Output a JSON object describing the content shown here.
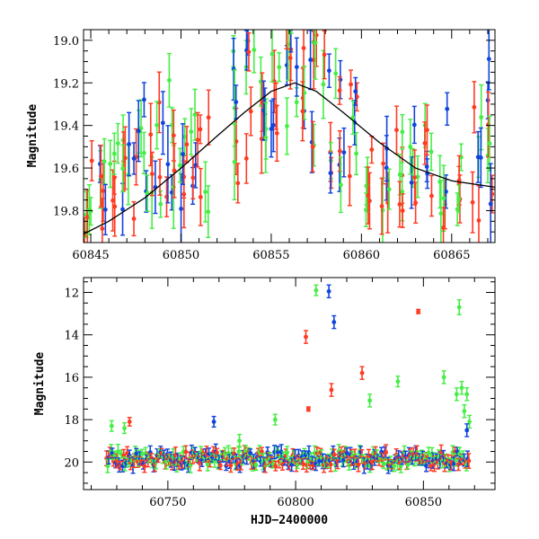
{
  "chart_data": [
    {
      "type": "scatter",
      "panel": "top",
      "xlabel": "",
      "ylabel": "Magnitude",
      "xlim": [
        60844.6,
        60867.4
      ],
      "ylim": [
        19.95,
        18.95
      ],
      "y_inverted": true,
      "x_ticks": [
        60845,
        60850,
        60855,
        60860,
        60865
      ],
      "y_ticks": [
        19.2,
        19.4,
        19.6,
        19.8
      ],
      "y_ticks_extra": [
        19.0
      ],
      "colors": {
        "green": "#44ee44",
        "red": "#ff3a22",
        "blue": "#1144dd",
        "model": "#000000"
      },
      "model_curve": {
        "name": "",
        "x": [
          60844.6,
          60846,
          60848,
          60850,
          60852,
          60853.5,
          60855,
          60856.3,
          60857.5,
          60859,
          60861,
          60863,
          60865,
          60867.4
        ],
        "y": [
          19.91,
          19.85,
          19.74,
          19.6,
          19.45,
          19.34,
          19.24,
          19.2,
          19.24,
          19.34,
          19.48,
          19.6,
          19.66,
          19.69
        ]
      },
      "clusters": [
        {
          "x": 60844.9,
          "y": 19.7,
          "spread": 0.26,
          "err": 0.1,
          "n": 6,
          "colors": [
            "red",
            "green"
          ]
        },
        {
          "x": 60845.6,
          "y": 19.72,
          "spread": 0.2,
          "err": 0.1,
          "n": 7,
          "colors": [
            "red",
            "green",
            "blue"
          ]
        },
        {
          "x": 60846.3,
          "y": 19.68,
          "spread": 0.22,
          "err": 0.1,
          "n": 6,
          "colors": [
            "red",
            "green"
          ]
        },
        {
          "x": 60846.9,
          "y": 19.55,
          "spread": 0.3,
          "err": 0.12,
          "n": 7,
          "colors": [
            "green",
            "red",
            "blue"
          ]
        },
        {
          "x": 60847.6,
          "y": 19.6,
          "spread": 0.24,
          "err": 0.1,
          "n": 6,
          "colors": [
            "red",
            "green",
            "blue"
          ]
        },
        {
          "x": 60848.2,
          "y": 19.45,
          "spread": 0.34,
          "err": 0.12,
          "n": 7,
          "colors": [
            "green",
            "red",
            "blue"
          ]
        },
        {
          "x": 60848.8,
          "y": 19.55,
          "spread": 0.26,
          "err": 0.1,
          "n": 6,
          "colors": [
            "red",
            "green",
            "blue"
          ]
        },
        {
          "x": 60849.4,
          "y": 19.4,
          "spread": 0.4,
          "err": 0.13,
          "n": 8,
          "colors": [
            "green",
            "red",
            "blue"
          ]
        },
        {
          "x": 60850.1,
          "y": 19.5,
          "spread": 0.3,
          "err": 0.11,
          "n": 7,
          "colors": [
            "red",
            "green",
            "blue"
          ]
        },
        {
          "x": 60850.8,
          "y": 19.55,
          "spread": 0.3,
          "err": 0.1,
          "n": 6,
          "colors": [
            "green",
            "blue",
            "red"
          ]
        },
        {
          "x": 60851.3,
          "y": 19.6,
          "spread": 0.25,
          "err": 0.1,
          "n": 5,
          "colors": [
            "red",
            "green"
          ]
        },
        {
          "x": 60853.1,
          "y": 19.35,
          "spread": 0.36,
          "err": 0.12,
          "n": 7,
          "colors": [
            "green",
            "red",
            "blue"
          ]
        },
        {
          "x": 60853.8,
          "y": 19.3,
          "spread": 0.3,
          "err": 0.11,
          "n": 7,
          "colors": [
            "red",
            "green",
            "blue"
          ]
        },
        {
          "x": 60854.5,
          "y": 19.25,
          "spread": 0.3,
          "err": 0.11,
          "n": 7,
          "colors": [
            "green",
            "red",
            "blue"
          ]
        },
        {
          "x": 60855.2,
          "y": 19.2,
          "spread": 0.26,
          "err": 0.1,
          "n": 7,
          "colors": [
            "red",
            "green",
            "blue"
          ]
        },
        {
          "x": 60855.9,
          "y": 19.18,
          "spread": 0.3,
          "err": 0.12,
          "n": 8,
          "colors": [
            "green",
            "red",
            "blue"
          ]
        },
        {
          "x": 60856.6,
          "y": 19.22,
          "spread": 0.28,
          "err": 0.11,
          "n": 7,
          "colors": [
            "red",
            "blue",
            "green"
          ]
        },
        {
          "x": 60857.3,
          "y": 19.28,
          "spread": 0.34,
          "err": 0.12,
          "n": 8,
          "colors": [
            "green",
            "red",
            "blue"
          ]
        },
        {
          "x": 60858.1,
          "y": 19.35,
          "spread": 0.3,
          "err": 0.11,
          "n": 7,
          "colors": [
            "red",
            "green",
            "blue"
          ]
        },
        {
          "x": 60858.8,
          "y": 19.4,
          "spread": 0.3,
          "err": 0.1,
          "n": 7,
          "colors": [
            "blue",
            "red",
            "green"
          ]
        },
        {
          "x": 60859.6,
          "y": 19.45,
          "spread": 0.28,
          "err": 0.1,
          "n": 7,
          "colors": [
            "red",
            "green",
            "blue"
          ]
        },
        {
          "x": 60860.5,
          "y": 19.55,
          "spread": 0.25,
          "err": 0.1,
          "n": 6,
          "colors": [
            "green",
            "red"
          ]
        },
        {
          "x": 60861.3,
          "y": 19.6,
          "spread": 0.26,
          "err": 0.11,
          "n": 7,
          "colors": [
            "red",
            "green",
            "blue"
          ]
        },
        {
          "x": 60862.1,
          "y": 19.65,
          "spread": 0.24,
          "err": 0.1,
          "n": 7,
          "colors": [
            "red",
            "green"
          ]
        },
        {
          "x": 60862.9,
          "y": 19.6,
          "spread": 0.3,
          "err": 0.11,
          "n": 7,
          "colors": [
            "green",
            "red",
            "blue"
          ]
        },
        {
          "x": 60863.7,
          "y": 19.65,
          "spread": 0.28,
          "err": 0.1,
          "n": 7,
          "colors": [
            "red",
            "blue",
            "green"
          ]
        },
        {
          "x": 60864.5,
          "y": 19.6,
          "spread": 0.3,
          "err": 0.11,
          "n": 7,
          "colors": [
            "green",
            "red",
            "blue"
          ]
        },
        {
          "x": 60865.3,
          "y": 19.65,
          "spread": 0.26,
          "err": 0.1,
          "n": 6,
          "colors": [
            "red",
            "green"
          ]
        },
        {
          "x": 60866.4,
          "y": 19.5,
          "spread": 0.36,
          "err": 0.12,
          "n": 7,
          "colors": [
            "red",
            "green",
            "blue"
          ]
        },
        {
          "x": 60867.1,
          "y": 19.45,
          "spread": 0.4,
          "err": 0.13,
          "n": 7,
          "colors": [
            "blue",
            "red",
            "green"
          ]
        }
      ]
    },
    {
      "type": "scatter",
      "panel": "bottom",
      "xlabel": "HJD−2400000",
      "ylabel": "Magnitude",
      "xlim": [
        60717,
        60878
      ],
      "ylim": [
        21.3,
        11.3
      ],
      "y_inverted": true,
      "x_ticks": [
        60750,
        60800,
        60850
      ],
      "y_ticks": [
        12,
        14,
        16,
        18,
        20
      ],
      "baseline": {
        "x_start": 60726,
        "x_end": 60868,
        "mag": 19.85,
        "scatter": 0.35,
        "colors": [
          "red",
          "green",
          "blue"
        ]
      },
      "outliers": [
        {
          "x": 60728,
          "y": 18.3,
          "err": 0.25,
          "color": "green"
        },
        {
          "x": 60733,
          "y": 18.4,
          "err": 0.25,
          "color": "green"
        },
        {
          "x": 60735,
          "y": 18.1,
          "err": 0.2,
          "color": "red"
        },
        {
          "x": 60768,
          "y": 18.1,
          "err": 0.25,
          "color": "blue"
        },
        {
          "x": 60778,
          "y": 19.0,
          "err": 0.3,
          "color": "green"
        },
        {
          "x": 60792,
          "y": 18.0,
          "err": 0.25,
          "color": "green"
        },
        {
          "x": 60804,
          "y": 14.1,
          "err": 0.3,
          "color": "red"
        },
        {
          "x": 60805,
          "y": 17.5,
          "err": 0.1,
          "color": "red"
        },
        {
          "x": 60808,
          "y": 11.9,
          "err": 0.25,
          "color": "green"
        },
        {
          "x": 60813,
          "y": 11.95,
          "err": 0.3,
          "color": "blue"
        },
        {
          "x": 60814,
          "y": 16.6,
          "err": 0.3,
          "color": "red"
        },
        {
          "x": 60815,
          "y": 13.4,
          "err": 0.3,
          "color": "blue"
        },
        {
          "x": 60826,
          "y": 15.8,
          "err": 0.3,
          "color": "red"
        },
        {
          "x": 60829,
          "y": 17.1,
          "err": 0.3,
          "color": "green"
        },
        {
          "x": 60840,
          "y": 16.2,
          "err": 0.25,
          "color": "green"
        },
        {
          "x": 60848,
          "y": 12.9,
          "err": 0.1,
          "color": "red"
        },
        {
          "x": 60858,
          "y": 16.0,
          "err": 0.3,
          "color": "green"
        },
        {
          "x": 60863,
          "y": 16.8,
          "err": 0.3,
          "color": "green"
        },
        {
          "x": 60864,
          "y": 12.7,
          "err": 0.35,
          "color": "green"
        },
        {
          "x": 60865,
          "y": 16.5,
          "err": 0.3,
          "color": "green"
        },
        {
          "x": 60867,
          "y": 16.8,
          "err": 0.3,
          "color": "green"
        },
        {
          "x": 60866,
          "y": 17.6,
          "err": 0.3,
          "color": "green"
        },
        {
          "x": 60868,
          "y": 18.1,
          "err": 0.3,
          "color": "green"
        },
        {
          "x": 60867,
          "y": 18.5,
          "err": 0.3,
          "color": "blue"
        }
      ]
    }
  ]
}
